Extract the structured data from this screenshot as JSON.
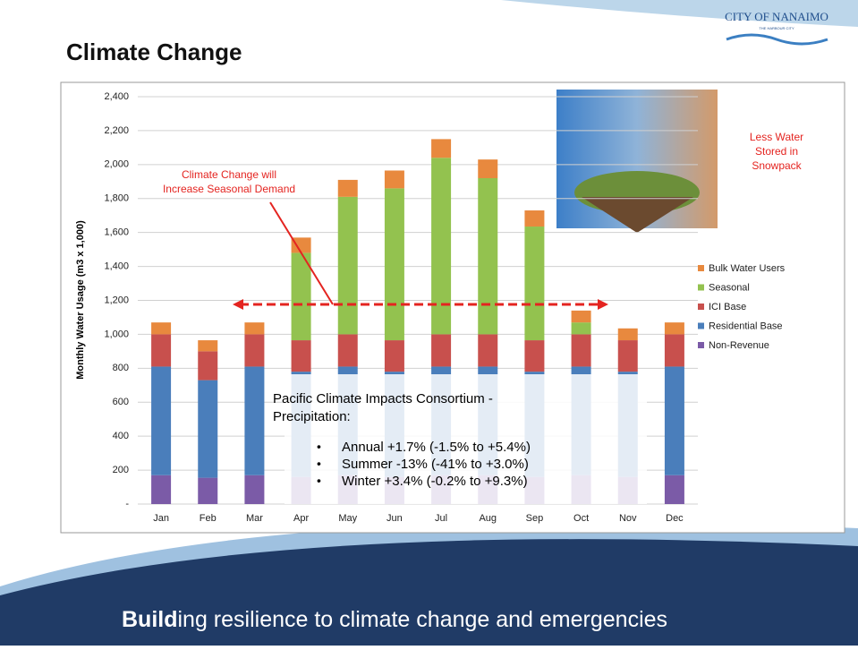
{
  "slide": {
    "title": "Climate Change",
    "logo": "CITY OF NANAIMO",
    "logo_tagline": "THE HARBOUR CITY",
    "footer_bold": "Build",
    "footer_rest": "ing resilience to climate change and emergencies"
  },
  "chart_data": {
    "type": "bar",
    "stacked": true,
    "y_label": "Monthly Water Usage (m3 x 1,000)",
    "categories": [
      "Jan",
      "Feb",
      "Mar",
      "Apr",
      "May",
      "Jun",
      "Jul",
      "Aug",
      "Sep",
      "Oct",
      "Nov",
      "Dec"
    ],
    "series": [
      {
        "name": "Non-Revenue",
        "color": "#7b5ba7",
        "values": [
          170,
          155,
          170,
          160,
          170,
          160,
          170,
          170,
          160,
          170,
          160,
          170
        ]
      },
      {
        "name": "Residential Base",
        "color": "#4a7ebb",
        "values": [
          640,
          575,
          640,
          620,
          640,
          620,
          640,
          640,
          620,
          640,
          620,
          640
        ]
      },
      {
        "name": "ICI Base",
        "color": "#c8504d",
        "values": [
          190,
          170,
          190,
          185,
          190,
          185,
          190,
          190,
          185,
          190,
          185,
          190
        ]
      },
      {
        "name": "Seasonal",
        "color": "#93c24f",
        "values": [
          0,
          0,
          0,
          515,
          810,
          895,
          1040,
          920,
          670,
          70,
          0,
          0
        ]
      },
      {
        "name": "Bulk Water Users",
        "color": "#e8893e",
        "values": [
          70,
          65,
          70,
          90,
          100,
          105,
          110,
          110,
          95,
          70,
          70,
          70
        ]
      }
    ],
    "ylim": [
      0,
      2400
    ],
    "yticks": [
      {
        "value": 0,
        "label": "-"
      },
      200,
      400,
      600,
      800,
      {
        "value": 1000,
        "label": "1,000"
      },
      {
        "value": 1200,
        "label": "1,200"
      },
      {
        "value": 1400,
        "label": "1,400"
      },
      {
        "value": 1600,
        "label": "1,600"
      },
      {
        "value": 1800,
        "label": "1,800"
      },
      {
        "value": 2000,
        "label": "2,000"
      },
      {
        "value": 2200,
        "label": "2,200"
      },
      {
        "value": 2400,
        "label": "2,400"
      }
    ],
    "grid": true,
    "legend": "right",
    "annotations": [
      "Climate Change will",
      "Increase Seasonal Demand",
      "Less Water",
      "Stored in",
      "Snowpack"
    ],
    "note": {
      "title": [
        "Pacific Climate Impacts Consortium -",
        "Precipitation:"
      ],
      "bullets": [
        "Annual +1.7% (-1.5% to +5.4%)",
        "Summer -13% (-41% to +3.0%)",
        "Winter +3.4% (-0.2% to +9.3%)"
      ]
    }
  }
}
